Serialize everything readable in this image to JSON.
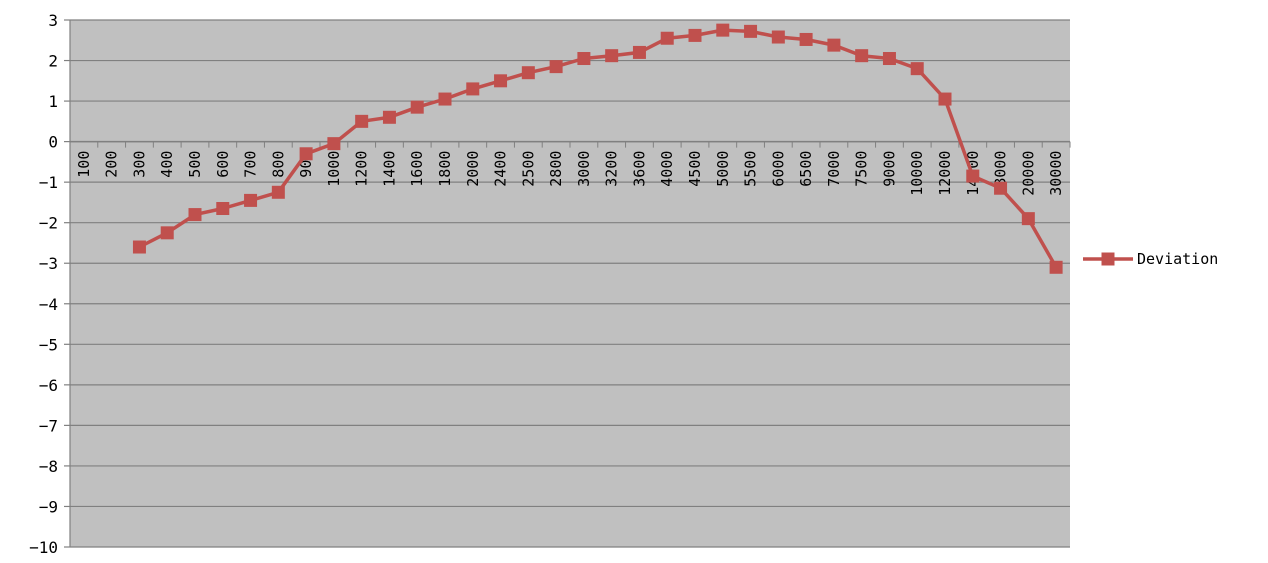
{
  "chart_data": {
    "type": "line",
    "title": "",
    "xlabel": "",
    "ylabel": "",
    "ylim": [
      -10,
      3
    ],
    "y_ticks": [
      3,
      2,
      1,
      0,
      -1,
      -2,
      -3,
      -4,
      -5,
      -6,
      -7,
      -8,
      -9,
      -10
    ],
    "grid": true,
    "legend_position": "right",
    "categories": [
      "100",
      "200",
      "300",
      "400",
      "500",
      "600",
      "700",
      "800",
      "900",
      "1000",
      "1200",
      "1400",
      "1600",
      "1800",
      "2000",
      "2400",
      "2500",
      "2800",
      "3000",
      "3200",
      "3600",
      "4000",
      "4500",
      "5000",
      "5500",
      "6000",
      "6500",
      "7000",
      "7500",
      "9000",
      "10000",
      "12000",
      "14000",
      "18000",
      "20000",
      "30000"
    ],
    "series": [
      {
        "name": "Deviation",
        "color": "#c0504d",
        "values": [
          null,
          null,
          -2.6,
          -2.25,
          -1.8,
          -1.65,
          -1.45,
          -1.25,
          -0.3,
          -0.05,
          0.5,
          0.6,
          0.85,
          1.05,
          1.3,
          1.5,
          1.7,
          1.85,
          2.05,
          2.12,
          2.2,
          2.55,
          2.62,
          2.75,
          2.72,
          2.58,
          2.52,
          2.38,
          2.12,
          2.05,
          1.8,
          1.05,
          -0.85,
          -1.15,
          -1.9,
          -3.1
        ]
      }
    ]
  },
  "colors": {
    "plot_background": "#c0c0c0",
    "gridline": "#808080",
    "axis": "#808080"
  }
}
